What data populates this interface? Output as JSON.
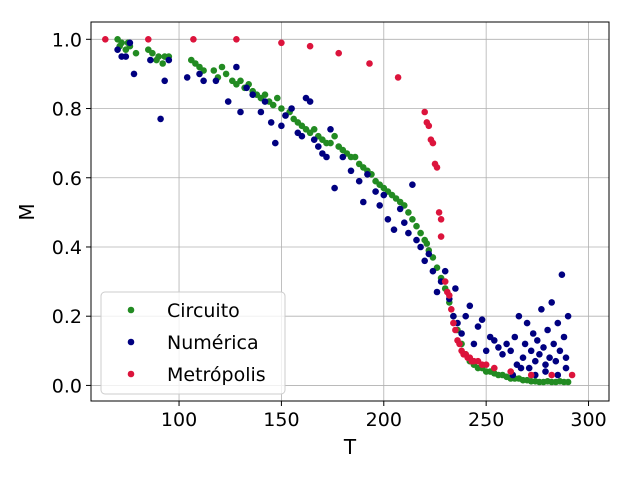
{
  "chart_data": {
    "type": "scatter",
    "xlabel": "T",
    "ylabel": "M",
    "xlim": [
      57,
      310
    ],
    "ylim": [
      -0.045,
      1.05
    ],
    "xticks": [
      100,
      150,
      200,
      250,
      300
    ],
    "yticks": [
      0.0,
      0.2,
      0.4,
      0.6,
      0.8,
      1.0
    ],
    "xtick_labels": [
      "100",
      "150",
      "200",
      "250",
      "300"
    ],
    "ytick_labels": [
      "0.0",
      "0.2",
      "0.4",
      "0.6",
      "0.8",
      "1.0"
    ],
    "grid": true,
    "legend_position": "lower-left",
    "series": [
      {
        "name": "Circuito",
        "color": "#228b22",
        "points": [
          [
            70,
            1.0
          ],
          [
            71,
            0.98
          ],
          [
            72,
            0.99
          ],
          [
            74,
            0.97
          ],
          [
            75,
            0.99
          ],
          [
            76,
            0.98
          ],
          [
            79,
            0.96
          ],
          [
            85,
            0.97
          ],
          [
            87,
            0.96
          ],
          [
            89,
            0.94
          ],
          [
            90,
            0.95
          ],
          [
            92,
            0.93
          ],
          [
            93,
            0.95
          ],
          [
            95,
            0.95
          ],
          [
            106,
            0.94
          ],
          [
            108,
            0.93
          ],
          [
            110,
            0.92
          ],
          [
            112,
            0.91
          ],
          [
            117,
            0.91
          ],
          [
            119,
            0.89
          ],
          [
            121,
            0.92
          ],
          [
            123,
            0.9
          ],
          [
            126,
            0.88
          ],
          [
            128,
            0.87
          ],
          [
            130,
            0.88
          ],
          [
            132,
            0.86
          ],
          [
            134,
            0.87
          ],
          [
            136,
            0.85
          ],
          [
            138,
            0.84
          ],
          [
            140,
            0.83
          ],
          [
            142,
            0.84
          ],
          [
            144,
            0.82
          ],
          [
            146,
            0.81
          ],
          [
            148,
            0.83
          ],
          [
            150,
            0.8
          ],
          [
            152,
            0.78
          ],
          [
            154,
            0.79
          ],
          [
            156,
            0.77
          ],
          [
            158,
            0.76
          ],
          [
            160,
            0.75
          ],
          [
            162,
            0.74
          ],
          [
            164,
            0.73
          ],
          [
            166,
            0.74
          ],
          [
            168,
            0.72
          ],
          [
            170,
            0.71
          ],
          [
            172,
            0.7
          ],
          [
            174,
            0.7
          ],
          [
            176,
            0.72
          ],
          [
            178,
            0.69
          ],
          [
            180,
            0.68
          ],
          [
            182,
            0.67
          ],
          [
            184,
            0.66
          ],
          [
            186,
            0.66
          ],
          [
            188,
            0.64
          ],
          [
            190,
            0.63
          ],
          [
            192,
            0.62
          ],
          [
            194,
            0.61
          ],
          [
            196,
            0.59
          ],
          [
            198,
            0.58
          ],
          [
            200,
            0.57
          ],
          [
            202,
            0.56
          ],
          [
            204,
            0.55
          ],
          [
            206,
            0.54
          ],
          [
            208,
            0.53
          ],
          [
            210,
            0.52
          ],
          [
            212,
            0.5
          ],
          [
            214,
            0.48
          ],
          [
            216,
            0.46
          ],
          [
            218,
            0.44
          ],
          [
            220,
            0.42
          ],
          [
            221,
            0.41
          ],
          [
            222,
            0.39
          ],
          [
            224,
            0.37
          ],
          [
            226,
            0.34
          ],
          [
            228,
            0.31
          ],
          [
            230,
            0.28
          ],
          [
            232,
            0.24
          ],
          [
            234,
            0.2
          ],
          [
            236,
            0.16
          ],
          [
            238,
            0.12
          ],
          [
            240,
            0.09
          ],
          [
            242,
            0.07
          ],
          [
            244,
            0.06
          ],
          [
            246,
            0.05
          ],
          [
            248,
            0.05
          ],
          [
            250,
            0.04
          ],
          [
            252,
            0.04
          ],
          [
            254,
            0.035
          ],
          [
            256,
            0.03
          ],
          [
            258,
            0.03
          ],
          [
            260,
            0.025
          ],
          [
            262,
            0.02
          ],
          [
            264,
            0.02
          ],
          [
            266,
            0.02
          ],
          [
            268,
            0.015
          ],
          [
            270,
            0.015
          ],
          [
            272,
            0.012
          ],
          [
            274,
            0.012
          ],
          [
            276,
            0.01
          ],
          [
            278,
            0.01
          ],
          [
            280,
            0.012
          ],
          [
            282,
            0.01
          ],
          [
            284,
            0.01
          ],
          [
            286,
            0.012
          ],
          [
            288,
            0.01
          ],
          [
            290,
            0.01
          ]
        ]
      },
      {
        "name": "Numérica",
        "color": "#000080",
        "points": [
          [
            70,
            0.97
          ],
          [
            72,
            0.95
          ],
          [
            74,
            0.95
          ],
          [
            76,
            0.99
          ],
          [
            78,
            0.9
          ],
          [
            86,
            0.94
          ],
          [
            91,
            0.77
          ],
          [
            93,
            0.88
          ],
          [
            95,
            0.94
          ],
          [
            104,
            0.89
          ],
          [
            110,
            0.9
          ],
          [
            112,
            0.88
          ],
          [
            118,
            0.88
          ],
          [
            124,
            0.82
          ],
          [
            128,
            0.92
          ],
          [
            130,
            0.79
          ],
          [
            133,
            0.86
          ],
          [
            136,
            0.84
          ],
          [
            140,
            0.79
          ],
          [
            142,
            0.82
          ],
          [
            145,
            0.76
          ],
          [
            147,
            0.7
          ],
          [
            150,
            0.75
          ],
          [
            152,
            0.78
          ],
          [
            155,
            0.8
          ],
          [
            158,
            0.73
          ],
          [
            160,
            0.72
          ],
          [
            162,
            0.83
          ],
          [
            164,
            0.82
          ],
          [
            166,
            0.71
          ],
          [
            168,
            0.69
          ],
          [
            170,
            0.67
          ],
          [
            172,
            0.66
          ],
          [
            174,
            0.74
          ],
          [
            176,
            0.57
          ],
          [
            180,
            0.66
          ],
          [
            184,
            0.62
          ],
          [
            188,
            0.59
          ],
          [
            190,
            0.53
          ],
          [
            192,
            0.61
          ],
          [
            196,
            0.56
          ],
          [
            198,
            0.52
          ],
          [
            200,
            0.55
          ],
          [
            202,
            0.48
          ],
          [
            205,
            0.45
          ],
          [
            208,
            0.51
          ],
          [
            210,
            0.47
          ],
          [
            212,
            0.44
          ],
          [
            214,
            0.58
          ],
          [
            216,
            0.42
          ],
          [
            218,
            0.4
          ],
          [
            220,
            0.36
          ],
          [
            222,
            0.38
          ],
          [
            224,
            0.33
          ],
          [
            226,
            0.27
          ],
          [
            228,
            0.3
          ],
          [
            230,
            0.33
          ],
          [
            232,
            0.25
          ],
          [
            234,
            0.2
          ],
          [
            235,
            0.28
          ],
          [
            236,
            0.18
          ],
          [
            238,
            0.15
          ],
          [
            240,
            0.2
          ],
          [
            242,
            0.23
          ],
          [
            244,
            0.12
          ],
          [
            246,
            0.17
          ],
          [
            248,
            0.19
          ],
          [
            250,
            0.1
          ],
          [
            252,
            0.14
          ],
          [
            254,
            0.13
          ],
          [
            256,
            0.11
          ],
          [
            258,
            0.09
          ],
          [
            260,
            0.12
          ],
          [
            262,
            0.1
          ],
          [
            264,
            0.14
          ],
          [
            265,
            0.06
          ],
          [
            266,
            0.2
          ],
          [
            268,
            0.08
          ],
          [
            269,
            0.12
          ],
          [
            270,
            0.18
          ],
          [
            271,
            0.05
          ],
          [
            272,
            0.1
          ],
          [
            273,
            0.15
          ],
          [
            274,
            0.07
          ],
          [
            275,
            0.13
          ],
          [
            276,
            0.09
          ],
          [
            277,
            0.22
          ],
          [
            278,
            0.11
          ],
          [
            279,
            0.06
          ],
          [
            280,
            0.16
          ],
          [
            281,
            0.08
          ],
          [
            282,
            0.24
          ],
          [
            283,
            0.12
          ],
          [
            284,
            0.07
          ],
          [
            285,
            0.18
          ],
          [
            286,
            0.1
          ],
          [
            287,
            0.32
          ],
          [
            288,
            0.14
          ],
          [
            289,
            0.08
          ],
          [
            290,
            0.2
          ],
          [
            263,
            0.03
          ],
          [
            267,
            0.05
          ],
          [
            274,
            0.03
          ],
          [
            279,
            0.04
          ],
          [
            285,
            0.03
          ],
          [
            289,
            0.05
          ]
        ]
      },
      {
        "name": "Metrópolis",
        "color": "#dc143c",
        "points": [
          [
            64,
            1.0
          ],
          [
            85,
            1.0
          ],
          [
            107,
            1.0
          ],
          [
            128,
            1.0
          ],
          [
            150,
            0.99
          ],
          [
            164,
            0.98
          ],
          [
            178,
            0.96
          ],
          [
            193,
            0.93
          ],
          [
            207,
            0.89
          ],
          [
            220,
            0.79
          ],
          [
            221,
            0.76
          ],
          [
            222,
            0.75
          ],
          [
            223,
            0.71
          ],
          [
            224,
            0.7
          ],
          [
            225,
            0.64
          ],
          [
            226,
            0.63
          ],
          [
            227,
            0.5
          ],
          [
            228,
            0.48
          ],
          [
            228,
            0.43
          ],
          [
            230,
            0.3
          ],
          [
            231,
            0.27
          ],
          [
            232,
            0.26
          ],
          [
            233,
            0.22
          ],
          [
            234,
            0.18
          ],
          [
            235,
            0.16
          ],
          [
            236,
            0.13
          ],
          [
            237,
            0.12
          ],
          [
            238,
            0.1
          ],
          [
            239,
            0.09
          ],
          [
            240,
            0.09
          ],
          [
            241,
            0.08
          ],
          [
            242,
            0.08
          ],
          [
            243,
            0.07
          ],
          [
            244,
            0.07
          ],
          [
            246,
            0.07
          ],
          [
            248,
            0.06
          ],
          [
            250,
            0.06
          ],
          [
            254,
            0.05
          ],
          [
            262,
            0.04
          ],
          [
            272,
            0.03
          ],
          [
            282,
            0.03
          ],
          [
            292,
            0.03
          ]
        ]
      }
    ]
  }
}
